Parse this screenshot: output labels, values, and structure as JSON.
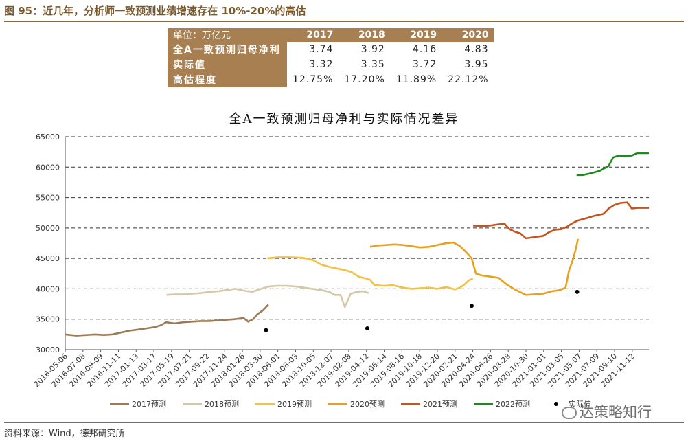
{
  "figure_title": "图 95：近几年，分析师一致预测业绩增速存在 10%-20%的高估",
  "table": {
    "unit_label": "单位：万亿元",
    "years": [
      "2017",
      "2018",
      "2019",
      "2020"
    ],
    "rows": [
      {
        "label": "全A一致预测归母净利",
        "values": [
          "3.74",
          "3.92",
          "4.16",
          "4.83"
        ]
      },
      {
        "label": "实际值",
        "values": [
          "3.32",
          "3.35",
          "3.72",
          "3.95"
        ]
      },
      {
        "label": "高估程度",
        "values": [
          "12.75%",
          "17.20%",
          "11.89%",
          "22.12%"
        ]
      }
    ]
  },
  "chart_data": {
    "type": "line",
    "title": "全A一致预测归母净利与实际情况差异",
    "xlabel": "",
    "ylabel": "",
    "ylim": [
      30000,
      65000
    ],
    "yticks": [
      "65000",
      "60000",
      "55000",
      "50000",
      "45000",
      "40000",
      "35000",
      "30000"
    ],
    "xlim": [
      "2016-05-06",
      "2022-01-10"
    ],
    "xticks": [
      "2016-05-06",
      "2016-07-08",
      "2016-09-09",
      "2016-11-11",
      "2017-01-13",
      "2017-03-17",
      "2017-05-19",
      "2017-07-21",
      "2017-09-22",
      "2017-11-24",
      "2018-01-26",
      "2018-03-30",
      "2018-06-01",
      "2018-08-03",
      "2018-10-05",
      "2018-12-07",
      "2019-02-08",
      "2019-04-12",
      "2019-06-14",
      "2019-08-16",
      "2019-10-18",
      "2019-12-20",
      "2020-02-21",
      "2020-04-24",
      "2020-06-26",
      "2020-08-28",
      "2020-10-30",
      "2021-01-01",
      "2021-03-05",
      "2021-05-07",
      "2021-07-09",
      "2021-09-10",
      "2021-11-12"
    ],
    "grid": true,
    "legend_position": "bottom",
    "series": [
      {
        "name": "2017预测",
        "color": "#9b7b55",
        "points": [
          [
            "2016-05-06",
            32500
          ],
          [
            "2016-06-15",
            32300
          ],
          [
            "2016-07-20",
            32400
          ],
          [
            "2016-08-20",
            32500
          ],
          [
            "2016-09-20",
            32400
          ],
          [
            "2016-10-20",
            32500
          ],
          [
            "2016-11-20",
            32800
          ],
          [
            "2016-12-20",
            33100
          ],
          [
            "2017-01-20",
            33300
          ],
          [
            "2017-02-20",
            33500
          ],
          [
            "2017-03-20",
            33700
          ],
          [
            "2017-04-10",
            34000
          ],
          [
            "2017-04-30",
            34500
          ],
          [
            "2017-05-30",
            34300
          ],
          [
            "2017-06-30",
            34500
          ],
          [
            "2017-07-30",
            34600
          ],
          [
            "2017-08-30",
            34700
          ],
          [
            "2017-09-30",
            34700
          ],
          [
            "2017-10-30",
            34800
          ],
          [
            "2017-11-30",
            34900
          ],
          [
            "2017-12-30",
            35000
          ],
          [
            "2018-01-30",
            35200
          ],
          [
            "2018-02-15",
            34600
          ],
          [
            "2018-03-05",
            35000
          ],
          [
            "2018-03-20",
            35800
          ],
          [
            "2018-04-10",
            36500
          ],
          [
            "2018-04-28",
            37400
          ]
        ]
      },
      {
        "name": "2018预测",
        "color": "#d6c8a6",
        "points": [
          [
            "2017-05-01",
            39000
          ],
          [
            "2017-06-01",
            39100
          ],
          [
            "2017-07-01",
            39100
          ],
          [
            "2017-08-01",
            39200
          ],
          [
            "2017-09-01",
            39300
          ],
          [
            "2017-10-01",
            39500
          ],
          [
            "2017-11-01",
            39600
          ],
          [
            "2017-12-01",
            39800
          ],
          [
            "2018-01-01",
            40000
          ],
          [
            "2018-02-01",
            39700
          ],
          [
            "2018-03-01",
            39500
          ],
          [
            "2018-04-10",
            40100
          ],
          [
            "2018-05-01",
            40400
          ],
          [
            "2018-06-01",
            40500
          ],
          [
            "2018-07-01",
            40500
          ],
          [
            "2018-08-01",
            40400
          ],
          [
            "2018-09-01",
            40200
          ],
          [
            "2018-10-01",
            40000
          ],
          [
            "2018-11-01",
            39800
          ],
          [
            "2018-12-01",
            39500
          ],
          [
            "2018-12-20",
            39000
          ],
          [
            "2019-01-10",
            39000
          ],
          [
            "2019-01-25",
            37000
          ],
          [
            "2019-02-15",
            39200
          ],
          [
            "2019-03-10",
            39500
          ],
          [
            "2019-03-30",
            39600
          ],
          [
            "2019-04-20",
            39300
          ]
        ]
      },
      {
        "name": "2019预测",
        "color": "#f3c145",
        "points": [
          [
            "2018-04-25",
            45000
          ],
          [
            "2018-06-01",
            45200
          ],
          [
            "2018-07-15",
            45200
          ],
          [
            "2018-08-30",
            45100
          ],
          [
            "2018-10-05",
            44700
          ],
          [
            "2018-11-01",
            44000
          ],
          [
            "2018-12-01",
            43600
          ],
          [
            "2019-01-01",
            43300
          ],
          [
            "2019-02-01",
            43000
          ],
          [
            "2019-02-20",
            42700
          ],
          [
            "2019-03-15",
            42000
          ],
          [
            "2019-04-10",
            41700
          ],
          [
            "2019-04-25",
            41500
          ],
          [
            "2019-05-10",
            40600
          ],
          [
            "2019-06-15",
            40500
          ],
          [
            "2019-07-15",
            40600
          ],
          [
            "2019-08-20",
            40200
          ],
          [
            "2019-09-20",
            40000
          ],
          [
            "2019-10-20",
            40100
          ],
          [
            "2019-11-20",
            40200
          ],
          [
            "2019-12-20",
            40000
          ],
          [
            "2020-01-20",
            40300
          ],
          [
            "2020-02-20",
            39900
          ],
          [
            "2020-03-10",
            40200
          ],
          [
            "2020-03-25",
            40700
          ],
          [
            "2020-04-10",
            41400
          ],
          [
            "2020-04-24",
            41700
          ]
        ]
      },
      {
        "name": "2020预测",
        "color": "#e8a11e",
        "points": [
          [
            "2019-04-25",
            46900
          ],
          [
            "2019-05-20",
            47100
          ],
          [
            "2019-06-20",
            47200
          ],
          [
            "2019-07-20",
            47300
          ],
          [
            "2019-08-20",
            47200
          ],
          [
            "2019-09-20",
            47000
          ],
          [
            "2019-10-20",
            46800
          ],
          [
            "2019-11-20",
            46900
          ],
          [
            "2019-12-20",
            47200
          ],
          [
            "2020-01-20",
            47500
          ],
          [
            "2020-02-15",
            47600
          ],
          [
            "2020-03-10",
            47000
          ],
          [
            "2020-04-01",
            46000
          ],
          [
            "2020-04-20",
            45000
          ],
          [
            "2020-05-05",
            42500
          ],
          [
            "2020-05-25",
            42200
          ],
          [
            "2020-06-25",
            42000
          ],
          [
            "2020-07-25",
            41800
          ],
          [
            "2020-08-20",
            40800
          ],
          [
            "2020-09-20",
            39900
          ],
          [
            "2020-10-30",
            39000
          ],
          [
            "2020-11-30",
            39100
          ],
          [
            "2020-12-30",
            39200
          ],
          [
            "2021-01-30",
            39600
          ],
          [
            "2021-02-28",
            39800
          ],
          [
            "2021-03-20",
            40200
          ],
          [
            "2021-04-01",
            43000
          ],
          [
            "2021-04-15",
            44800
          ],
          [
            "2021-04-25",
            46500
          ],
          [
            "2021-05-03",
            48200
          ]
        ]
      },
      {
        "name": "2021预测",
        "color": "#c4541f",
        "points": [
          [
            "2020-04-25",
            50400
          ],
          [
            "2020-05-25",
            50300
          ],
          [
            "2020-06-25",
            50400
          ],
          [
            "2020-07-25",
            50600
          ],
          [
            "2020-08-15",
            50700
          ],
          [
            "2020-09-01",
            49800
          ],
          [
            "2020-09-20",
            49400
          ],
          [
            "2020-10-10",
            49100
          ],
          [
            "2020-10-30",
            48300
          ],
          [
            "2020-11-30",
            48500
          ],
          [
            "2020-12-30",
            48700
          ],
          [
            "2021-01-20",
            49300
          ],
          [
            "2021-02-10",
            49700
          ],
          [
            "2021-03-05",
            49800
          ],
          [
            "2021-03-25",
            50200
          ],
          [
            "2021-04-10",
            50700
          ],
          [
            "2021-05-01",
            51200
          ],
          [
            "2021-06-01",
            51600
          ],
          [
            "2021-07-01",
            52000
          ],
          [
            "2021-08-01",
            52300
          ],
          [
            "2021-08-20",
            53200
          ],
          [
            "2021-09-10",
            53800
          ],
          [
            "2021-10-01",
            54100
          ],
          [
            "2021-10-25",
            54200
          ],
          [
            "2021-11-10",
            53200
          ],
          [
            "2021-12-01",
            53300
          ],
          [
            "2022-01-10",
            53300
          ]
        ]
      },
      {
        "name": "2022预测",
        "color": "#1e8a1e",
        "points": [
          [
            "2021-04-28",
            58700
          ],
          [
            "2021-05-20",
            58700
          ],
          [
            "2021-06-20",
            59000
          ],
          [
            "2021-07-20",
            59400
          ],
          [
            "2021-08-20",
            60200
          ],
          [
            "2021-09-05",
            61600
          ],
          [
            "2021-09-25",
            61900
          ],
          [
            "2021-10-20",
            61800
          ],
          [
            "2021-11-10",
            61900
          ],
          [
            "2021-11-30",
            62300
          ],
          [
            "2022-01-10",
            62300
          ]
        ]
      },
      {
        "name": "实际值",
        "color": "#000000",
        "marker": "dot",
        "points": [
          [
            "2018-04-20",
            33200
          ],
          [
            "2019-04-15",
            33500
          ],
          [
            "2020-04-20",
            37200
          ],
          [
            "2021-04-30",
            39500
          ]
        ]
      }
    ]
  },
  "source_text": "资料来源：Wind，德邦研究所",
  "watermark": "达策略知行"
}
